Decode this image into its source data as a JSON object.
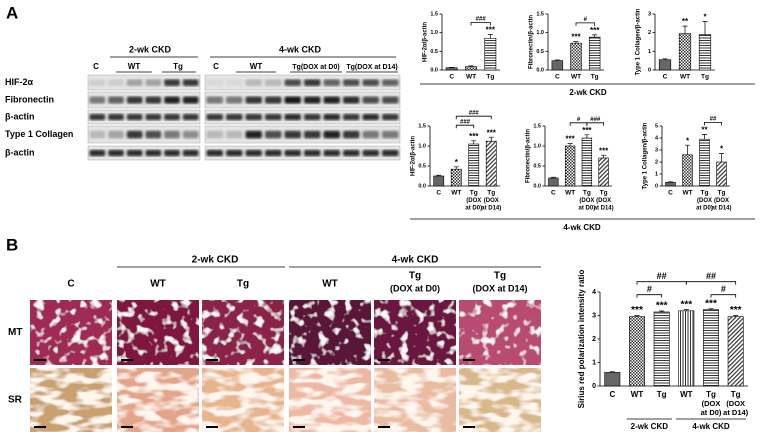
{
  "panel_labels": [
    "A",
    "B"
  ],
  "blot": {
    "groups": [
      "2-wk CKD",
      "4-wk CKD"
    ],
    "lanes": [
      "C",
      "WT",
      "Tg",
      "C",
      "WT",
      "Tg(DOX at D0)",
      "Tg(DOX at D14)"
    ],
    "rows": [
      "HIF-2α",
      "Fibronectin",
      "β-actin",
      "Type 1 Collagen",
      "β-actin"
    ]
  },
  "chart_groups": [
    "2-wk CKD",
    "4-wk CKD"
  ],
  "histology": {
    "groups": [
      "2-wk CKD",
      "4-wk CKD"
    ],
    "columns": [
      [
        "C"
      ],
      [
        "WT"
      ],
      [
        "Tg"
      ],
      [
        "WT"
      ],
      [
        "Tg",
        "(DOX at D0)"
      ],
      [
        "Tg",
        "(DOX at D14)"
      ]
    ],
    "rows": [
      "MT",
      "SR"
    ]
  },
  "chart_data": [
    {
      "type": "bar",
      "ylabel": "HIF-2α/β-actin",
      "categories": [
        [
          "C"
        ],
        [
          "WT"
        ],
        [
          "Tg"
        ]
      ],
      "values": [
        0.06,
        0.09,
        0.85
      ],
      "errors": [
        0.01,
        0.02,
        0.1
      ],
      "ylim": [
        0,
        1.5
      ],
      "yticks": [
        {
          "value": 0,
          "label": "0.0"
        },
        {
          "value": 0.5,
          "label": "0.5"
        },
        {
          "value": 1,
          "label": "1.0"
        },
        {
          "value": 1.5,
          "label": "1.5"
        }
      ],
      "stars": [
        null,
        null,
        "***"
      ],
      "brackets": [
        "###"
      ]
    },
    {
      "type": "bar",
      "ylabel": "Fibronectin/β-actin",
      "categories": [
        [
          "C"
        ],
        [
          "WT"
        ],
        [
          "Tg"
        ]
      ],
      "values": [
        0.25,
        0.72,
        0.88
      ],
      "errors": [
        0.02,
        0.04,
        0.06
      ],
      "ylim": [
        0,
        1.5
      ],
      "yticks": [
        {
          "value": 0,
          "label": "0.0"
        },
        {
          "value": 0.5,
          "label": "0.5"
        },
        {
          "value": 1,
          "label": "1.0"
        },
        {
          "value": 1.5,
          "label": "1.5"
        }
      ],
      "stars": [
        null,
        "***",
        "***"
      ],
      "brackets": [
        "#"
      ]
    },
    {
      "type": "bar",
      "ylabel": "Type 1 Collagen/β-actin",
      "categories": [
        [
          "C"
        ],
        [
          "WT"
        ],
        [
          "Tg"
        ]
      ],
      "values": [
        0.55,
        1.95,
        1.9
      ],
      "errors": [
        0.05,
        0.4,
        0.7
      ],
      "ylim": [
        0,
        3
      ],
      "yticks": [
        0,
        1,
        2,
        3
      ],
      "stars": [
        null,
        "**",
        "*"
      ],
      "brackets": []
    },
    {
      "type": "bar",
      "ylabel": "HIF-2α/β-actin",
      "categories": [
        [
          "C"
        ],
        [
          "WT"
        ],
        [
          "Tg",
          "(DOX",
          "at D0)"
        ],
        [
          "Tg",
          "(DOX",
          "at D14)"
        ]
      ],
      "values": [
        0.25,
        0.42,
        1.05,
        1.12
      ],
      "errors": [
        0.02,
        0.06,
        0.08,
        0.1
      ],
      "ylim": [
        0,
        1.5
      ],
      "yticks": [
        {
          "value": 0,
          "label": "0.0"
        },
        {
          "value": 0.5,
          "label": "0.5"
        },
        {
          "value": 1,
          "label": "1.0"
        },
        {
          "value": 1.5,
          "label": "1.5"
        }
      ],
      "stars": [
        null,
        "*",
        "***",
        "***"
      ],
      "brackets": [
        "###",
        "###"
      ]
    },
    {
      "type": "bar",
      "ylabel": "Fibronectin/β-actin",
      "categories": [
        [
          "C"
        ],
        [
          "WT"
        ],
        [
          "Tg",
          "(DOX",
          "at D0)"
        ],
        [
          "Tg",
          "(DOX",
          "at D14)"
        ]
      ],
      "values": [
        0.2,
        1.0,
        1.2,
        0.7
      ],
      "errors": [
        0.02,
        0.06,
        0.08,
        0.07
      ],
      "ylim": [
        0,
        1.5
      ],
      "yticks": [
        {
          "value": 0,
          "label": "0.0"
        },
        {
          "value": 0.5,
          "label": "0.5"
        },
        {
          "value": 1,
          "label": "1.0"
        },
        {
          "value": 1.5,
          "label": "1.5"
        }
      ],
      "stars": [
        null,
        "***",
        "***",
        "***"
      ],
      "brackets": [
        "#",
        "###"
      ]
    },
    {
      "type": "bar",
      "ylabel": "Type 1 Collagen/β-actin",
      "categories": [
        [
          "C"
        ],
        [
          "WT"
        ],
        [
          "Tg",
          "(DOX",
          "at D0)"
        ],
        [
          "Tg",
          "(DOX",
          "at D14)"
        ]
      ],
      "values": [
        0.3,
        2.6,
        3.9,
        2.0
      ],
      "errors": [
        0.05,
        0.8,
        0.4,
        0.7
      ],
      "ylim": [
        0,
        5
      ],
      "yticks": [
        0,
        1,
        2,
        3,
        4,
        5
      ],
      "stars": [
        null,
        "*",
        "**",
        "*"
      ],
      "brackets": [
        "##"
      ]
    },
    {
      "type": "bar",
      "ylabel": "Sirius red polarization intensity ratio",
      "categories": [
        [
          "C"
        ],
        [
          "WT"
        ],
        [
          "Tg"
        ],
        [
          "WT"
        ],
        [
          "Tg",
          "(DOX",
          "at D0)"
        ],
        [
          "Tg",
          "(DOX",
          "at D14)"
        ]
      ],
      "values": [
        0.58,
        2.95,
        3.15,
        3.2,
        3.25,
        2.95
      ],
      "errors": [
        0.03,
        0.05,
        0.04,
        0.05,
        0.04,
        0.05
      ],
      "ylim": [
        0,
        4
      ],
      "yticks": [
        0,
        1,
        2,
        3,
        4
      ],
      "stars": [
        null,
        "***",
        "***",
        "***",
        "***",
        "***"
      ],
      "brackets": [
        "##",
        "##",
        "#",
        "#"
      ],
      "groups": [
        "2-wk CKD",
        "4-wk CKD"
      ]
    }
  ]
}
